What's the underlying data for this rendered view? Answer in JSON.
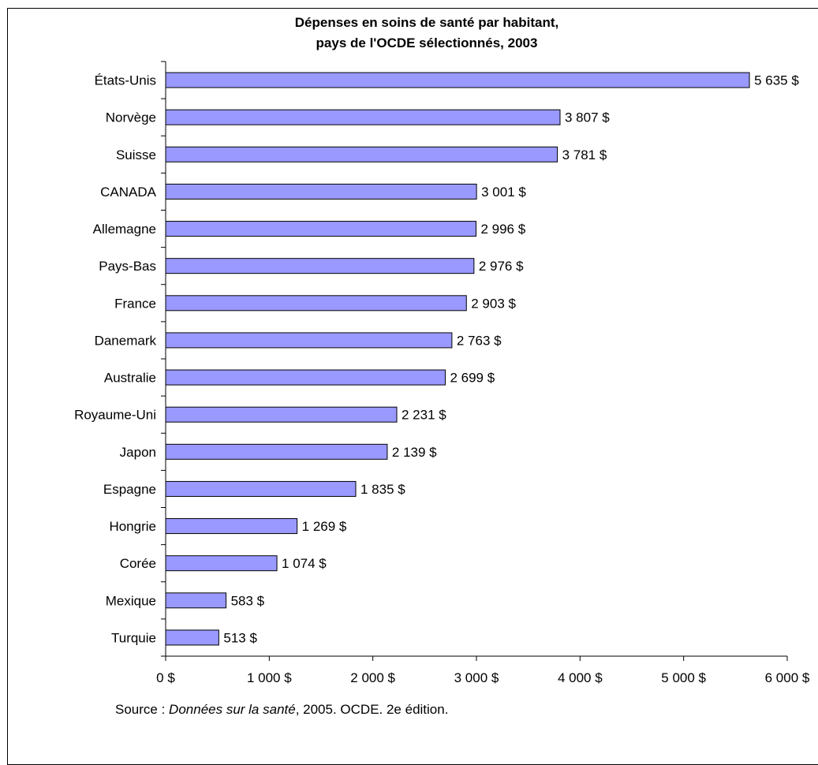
{
  "chart_data": {
    "type": "bar",
    "orientation": "horizontal",
    "title_line1": "Dépenses en soins de santé par habitant,",
    "title_line2": "pays de l'OCDE sélectionnés, 2003",
    "categories": [
      "États-Unis",
      "Norvège",
      "Suisse",
      "CANADA",
      "Allemagne",
      "Pays-Bas",
      "France",
      "Danemark",
      "Australie",
      "Royaume-Uni",
      "Japon",
      "Espagne",
      "Hongrie",
      "Corée",
      "Mexique",
      "Turquie"
    ],
    "values": [
      5635,
      3807,
      3781,
      3001,
      2996,
      2976,
      2903,
      2763,
      2699,
      2231,
      2139,
      1835,
      1269,
      1074,
      583,
      513
    ],
    "data_labels": [
      "5 635 $",
      "3 807 $",
      "3 781 $",
      "3 001 $",
      "2 996 $",
      "2 976 $",
      "2 903 $",
      "2 763 $",
      "2 699 $",
      "2 231 $",
      "2 139 $",
      "1 835 $",
      "1 269 $",
      "1 074 $",
      "583 $",
      "513 $"
    ],
    "x_ticks": [
      0,
      1000,
      2000,
      3000,
      4000,
      5000,
      6000
    ],
    "x_tick_labels": [
      "0 $",
      "1 000 $",
      "2 000 $",
      "3 000 $",
      "4 000 $",
      "5 000 $",
      "6 000 $"
    ],
    "xlim": [
      0,
      6000
    ],
    "xlabel": "",
    "ylabel": "",
    "grid": false,
    "bar_color": "#9999ff",
    "bar_edge_color": "#000000"
  },
  "source": {
    "prefix": "Source : ",
    "title_italic": "Données sur la santé",
    "suffix": ", 2005. OCDE. 2e édition."
  }
}
